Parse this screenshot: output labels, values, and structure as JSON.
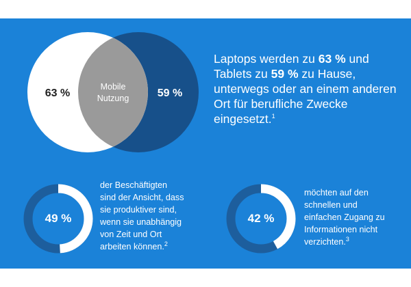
{
  "colors": {
    "panel": "#1b82d8",
    "light_circle": "#ffffff",
    "dark_circle": "#17508a",
    "overlap": "#9a9a9a",
    "ring_track": "#1d5e9d",
    "ring_fill": "#ffffff"
  },
  "venn": {
    "left_value": "63 %",
    "right_value": "59 %",
    "overlap_label_line1": "Mobile",
    "overlap_label_line2": "Nutzung"
  },
  "headline": {
    "part1": "Laptops werden zu ",
    "value1": "63 %",
    "part2": " und Tablets zu ",
    "value2": "59 %",
    "part3": " zu Hause, unterwegs oder an einem anderen Ort für berufliche Zwecke eingesetzt.",
    "footnote": "1"
  },
  "stats": [
    {
      "value": "49 %",
      "fraction": 0.49,
      "lines": [
        "der Beschäftigten",
        "sind der Ansicht, dass",
        "sie produktiver sind,",
        "wenn sie unabhängig",
        "von Zeit und Ort",
        "arbeiten können."
      ],
      "footnote": "2"
    },
    {
      "value": "42 %",
      "fraction": 0.42,
      "lines": [
        "möchten auf den",
        "schnellen und",
        "einfachen Zugang zu",
        "Informationen nicht",
        "verzichten."
      ],
      "footnote": "3"
    }
  ]
}
